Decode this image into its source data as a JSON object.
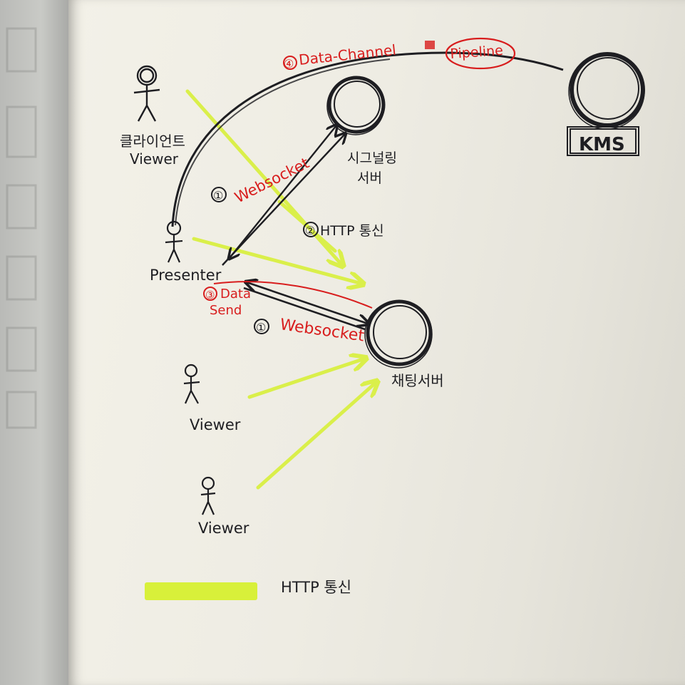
{
  "nodes": {
    "client_viewer": {
      "label_ko": "클라이언트",
      "label_en": "Viewer"
    },
    "signaling_server": {
      "label_line1": "시그널링",
      "label_line2": "서버"
    },
    "kms": {
      "label": "KMS"
    },
    "presenter": {
      "label": "Presenter"
    },
    "chat_server": {
      "label": "채팅서버"
    },
    "viewer_1": {
      "label": "Viewer"
    },
    "viewer_2": {
      "label": "Viewer"
    }
  },
  "edges": {
    "data_channel": {
      "step": "④",
      "label": "Data-Channel",
      "extra": "Pipeline"
    },
    "websocket_signaling": {
      "step": "①",
      "label": "Websocket"
    },
    "http_signaling": {
      "step": "②",
      "label": "HTTP 통신"
    },
    "data_send": {
      "step": "③",
      "label_line1": "Data",
      "label_line2": "Send"
    },
    "websocket_chat": {
      "step": "①",
      "label": "Websocket"
    }
  },
  "legend": {
    "label": "HTTP 통신",
    "color": "#d8f03a"
  },
  "colors": {
    "ink": "#1e1e22",
    "red_pen": "#d81d1d",
    "highlighter": "#d8f03a"
  }
}
